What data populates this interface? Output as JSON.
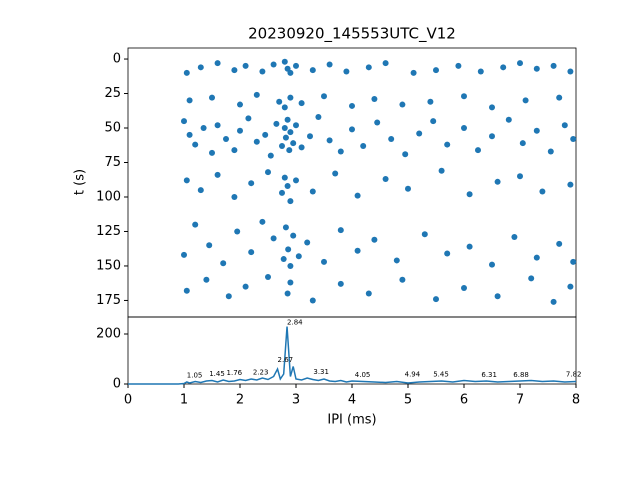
{
  "chart_data": [
    {
      "type": "scatter",
      "title": "20230920_145553UTC_V12",
      "y_label": "t (s)",
      "xlim": [
        0,
        8
      ],
      "ylim": [
        187,
        -8
      ],
      "yticks": [
        0,
        25,
        50,
        75,
        100,
        125,
        150,
        175
      ],
      "color": "#1f77b4",
      "x": [
        1.05,
        1.3,
        1.6,
        1.9,
        2.1,
        2.4,
        2.6,
        2.8,
        2.85,
        2.9,
        3.0,
        3.3,
        3.6,
        3.9,
        4.3,
        4.6,
        5.1,
        5.5,
        5.9,
        6.3,
        6.7,
        7.0,
        7.3,
        7.6,
        7.9,
        1.1,
        1.5,
        2.0,
        2.3,
        2.7,
        2.8,
        2.9,
        3.1,
        3.5,
        4.0,
        4.4,
        4.9,
        5.4,
        6.0,
        6.5,
        7.1,
        7.7,
        1.0,
        1.1,
        1.2,
        1.35,
        1.5,
        1.6,
        1.75,
        1.9,
        2.0,
        2.15,
        2.3,
        2.45,
        2.55,
        2.65,
        2.75,
        2.8,
        2.82,
        2.85,
        2.88,
        2.9,
        2.95,
        3.0,
        3.1,
        3.25,
        3.4,
        3.6,
        3.8,
        4.0,
        4.2,
        4.45,
        4.7,
        4.95,
        5.2,
        5.45,
        5.7,
        6.0,
        6.25,
        6.5,
        6.8,
        7.05,
        7.3,
        7.55,
        7.8,
        7.95,
        1.05,
        1.3,
        1.6,
        1.9,
        2.2,
        2.5,
        2.75,
        2.8,
        2.85,
        2.9,
        3.0,
        3.3,
        3.7,
        4.1,
        4.6,
        5.0,
        5.6,
        6.1,
        6.6,
        7.0,
        7.4,
        7.9,
        1.0,
        1.2,
        1.45,
        1.7,
        1.95,
        2.2,
        2.4,
        2.6,
        2.78,
        2.82,
        2.86,
        2.9,
        2.95,
        3.05,
        3.2,
        3.5,
        3.8,
        4.1,
        4.4,
        4.8,
        5.3,
        5.7,
        6.1,
        6.5,
        6.9,
        7.3,
        7.7,
        7.95,
        1.05,
        1.4,
        1.8,
        2.1,
        2.5,
        2.85,
        2.9,
        3.3,
        3.8,
        4.3,
        4.9,
        5.5,
        6.0,
        6.6,
        7.2,
        7.6,
        7.9
      ],
      "values": [
        10,
        6,
        3,
        8,
        5,
        9,
        4,
        2,
        7,
        10,
        5,
        8,
        4,
        9,
        6,
        3,
        10,
        8,
        5,
        9,
        6,
        3,
        7,
        5,
        9,
        30,
        28,
        33,
        26,
        31,
        35,
        28,
        32,
        27,
        34,
        29,
        33,
        31,
        27,
        35,
        30,
        28,
        45,
        55,
        62,
        50,
        68,
        48,
        58,
        66,
        52,
        43,
        60,
        55,
        70,
        47,
        63,
        50,
        57,
        44,
        66,
        53,
        61,
        48,
        64,
        56,
        42,
        59,
        67,
        51,
        63,
        46,
        58,
        69,
        54,
        45,
        62,
        50,
        66,
        56,
        44,
        61,
        52,
        67,
        48,
        58,
        88,
        95,
        84,
        100,
        90,
        82,
        97,
        86,
        92,
        103,
        88,
        96,
        83,
        99,
        87,
        94,
        81,
        98,
        89,
        85,
        96,
        91,
        142,
        120,
        135,
        148,
        125,
        140,
        118,
        130,
        145,
        122,
        138,
        150,
        128,
        143,
        133,
        147,
        124,
        139,
        131,
        146,
        127,
        141,
        136,
        149,
        129,
        144,
        134,
        147,
        168,
        160,
        172,
        165,
        158,
        170,
        162,
        175,
        163,
        170,
        160,
        174,
        166,
        172,
        159,
        176,
        165
      ]
    },
    {
      "type": "line",
      "x_label": "IPI (ms)",
      "xlim": [
        0,
        8
      ],
      "ylim": [
        0,
        268
      ],
      "xticks": [
        0,
        1,
        2,
        3,
        4,
        5,
        6,
        7,
        8
      ],
      "yticks": [
        0,
        200
      ],
      "color": "#1f77b4",
      "x": [
        0,
        0.9,
        1.0,
        1.05,
        1.1,
        1.2,
        1.3,
        1.4,
        1.5,
        1.6,
        1.7,
        1.8,
        1.9,
        2.0,
        2.1,
        2.2,
        2.3,
        2.4,
        2.5,
        2.6,
        2.67,
        2.72,
        2.78,
        2.84,
        2.9,
        2.95,
        3.0,
        3.1,
        3.2,
        3.3,
        3.4,
        3.5,
        3.6,
        3.7,
        3.8,
        3.9,
        4.0,
        4.2,
        4.4,
        4.6,
        4.8,
        5.0,
        5.2,
        5.4,
        5.6,
        5.8,
        6.0,
        6.2,
        6.4,
        6.6,
        6.8,
        7.0,
        7.2,
        7.4,
        7.6,
        7.8,
        8.0
      ],
      "values": [
        0,
        0,
        2,
        8,
        4,
        10,
        6,
        12,
        14,
        8,
        16,
        10,
        12,
        18,
        14,
        20,
        16,
        24,
        18,
        30,
        60,
        20,
        40,
        230,
        30,
        70,
        20,
        16,
        24,
        18,
        14,
        20,
        12,
        10,
        14,
        8,
        12,
        10,
        8,
        6,
        10,
        4,
        8,
        10,
        12,
        8,
        14,
        10,
        12,
        8,
        10,
        12,
        14,
        10,
        12,
        8,
        10
      ],
      "annotations": [
        {
          "x": 2.84,
          "y": 230,
          "label": "2.84"
        },
        {
          "x": 2.67,
          "y": 80,
          "label": "2.67"
        },
        {
          "x": 1.05,
          "y": 18,
          "label": "1.05"
        },
        {
          "x": 1.45,
          "y": 24,
          "label": "1.45"
        },
        {
          "x": 1.76,
          "y": 28,
          "label": "1.76"
        },
        {
          "x": 2.23,
          "y": 30,
          "label": "2.23"
        },
        {
          "x": 3.31,
          "y": 32,
          "label": "3.31"
        },
        {
          "x": 4.05,
          "y": 20,
          "label": "4.05"
        },
        {
          "x": 4.94,
          "y": 22,
          "label": "4.94"
        },
        {
          "x": 5.45,
          "y": 22,
          "label": "5.45"
        },
        {
          "x": 6.31,
          "y": 20,
          "label": "6.31"
        },
        {
          "x": 6.88,
          "y": 20,
          "label": "6.88"
        },
        {
          "x": 7.82,
          "y": 22,
          "label": "7.82"
        }
      ]
    }
  ]
}
